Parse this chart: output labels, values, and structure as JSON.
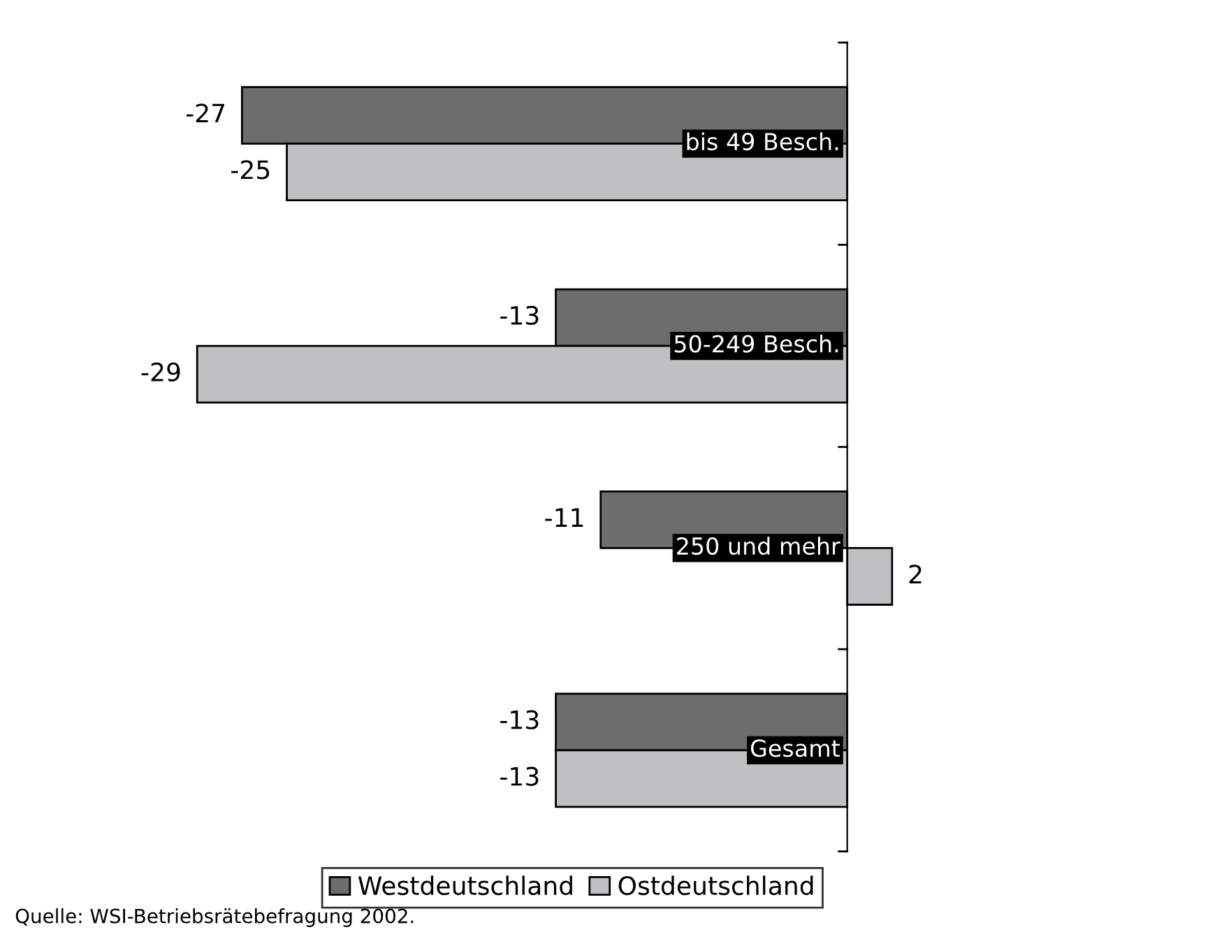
{
  "chart_data": {
    "type": "bar",
    "orientation": "horizontal",
    "categories": [
      "bis 49 Besch.",
      "50-249 Besch.",
      "250 und mehr",
      "Gesamt"
    ],
    "series": [
      {
        "name": "Westdeutschland",
        "color": "#6d6d6d",
        "values": [
          -27,
          -13,
          -11,
          -13
        ]
      },
      {
        "name": "Ostdeutschland",
        "color": "#c0c0c2",
        "values": [
          -25,
          -29,
          2,
          -13
        ]
      }
    ],
    "data_labels": true,
    "legend": "bottom",
    "annotations": [
      "Quelle: WSI-Betriebsrätebefragung 2002."
    ]
  }
}
